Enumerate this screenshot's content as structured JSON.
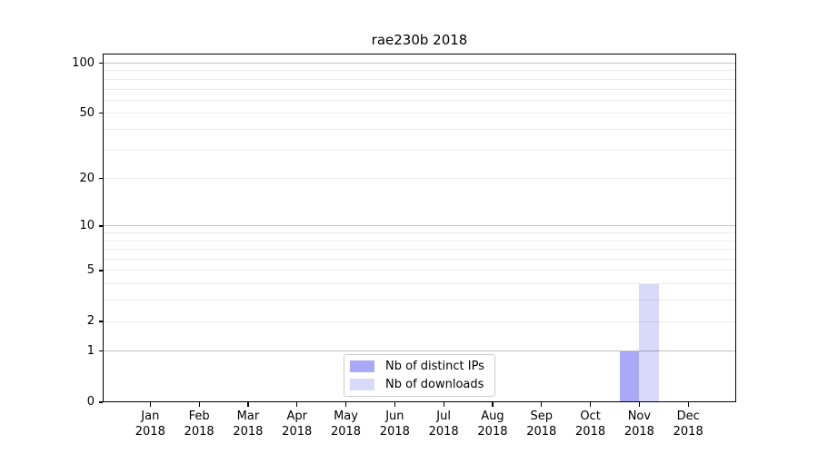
{
  "title": "rae230b 2018",
  "legend": {
    "position": "lower center",
    "items": [
      {
        "label": "Nb of distinct IPs",
        "color": "#a9a9f7"
      },
      {
        "label": "Nb of downloads",
        "color": "#d9d9fa"
      }
    ]
  },
  "chart_data": {
    "type": "bar",
    "title": "rae230b 2018",
    "categories": [
      "Jan 2018",
      "Feb 2018",
      "Mar 2018",
      "Apr 2018",
      "May 2018",
      "Jun 2018",
      "Jul 2018",
      "Aug 2018",
      "Sep 2018",
      "Oct 2018",
      "Nov 2018",
      "Dec 2018"
    ],
    "series": [
      {
        "name": "Nb of distinct IPs",
        "color": "#a9a9f7",
        "values": [
          0,
          0,
          0,
          0,
          0,
          0,
          0,
          0,
          0,
          0,
          1,
          0
        ]
      },
      {
        "name": "Nb of downloads",
        "color": "#d9d9fa",
        "values": [
          0,
          0,
          0,
          0,
          0,
          0,
          0,
          0,
          0,
          0,
          4,
          0
        ]
      }
    ],
    "xlabel": "",
    "ylabel": "",
    "yscale": "log1p",
    "yticks": [
      0,
      1,
      2,
      5,
      10,
      20,
      50,
      100
    ],
    "grid_major": [
      1,
      10,
      100
    ],
    "grid_minor": [
      2,
      3,
      4,
      5,
      6,
      7,
      8,
      9,
      20,
      30,
      40,
      50,
      60,
      70,
      80,
      90
    ],
    "ylim_top_value": 114,
    "grid": "horizontal",
    "legend_position": "lower center"
  }
}
